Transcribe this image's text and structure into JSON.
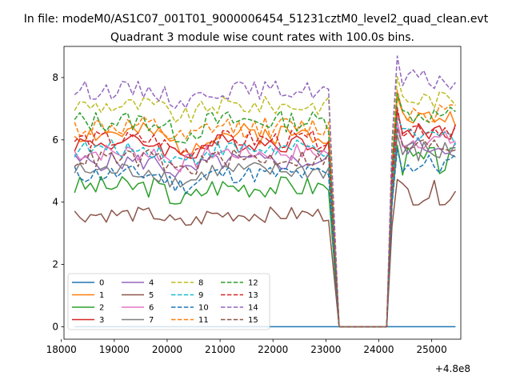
{
  "chart_data": {
    "type": "line",
    "suptitle": "In file: modeM0/AS1C07_001T01_9000006454_51231cztM0_level2_quad_clean.evt",
    "title": "Quadrant 3 module wise count rates with 100.0s bins.",
    "xlabel": "",
    "ylabel": "",
    "x_offset_label": "+4.8e8",
    "xlim": [
      18050,
      25550
    ],
    "ylim": [
      -0.4,
      9.0
    ],
    "x_ticks": [
      18000,
      19000,
      20000,
      21000,
      22000,
      23000,
      24000,
      25000
    ],
    "x_tick_labels": [
      "18000",
      "19000",
      "20000",
      "21000",
      "22000",
      "23000",
      "24000",
      "25000"
    ],
    "y_ticks": [
      0,
      2,
      4,
      6,
      8
    ],
    "y_tick_labels": [
      "0",
      "2",
      "4",
      "6",
      "8"
    ],
    "grid": false,
    "legend_placement": "lower-left",
    "legend_columns": 4,
    "segment1": {
      "x_start": 18250,
      "x_step": 100,
      "count": 49
    },
    "gap": {
      "x_start": 23250,
      "x_end": 24150,
      "value": 0
    },
    "segment2": {
      "x_start": 24250,
      "x_step": 100,
      "count": 13
    },
    "series": [
      {
        "name": "0",
        "color": "#1f77b4",
        "dash": "solid",
        "base1": 0.0,
        "amp1": 0.0,
        "base2": 0.0,
        "amp2": 0.0,
        "seed": 1
      },
      {
        "name": "1",
        "color": "#ff7f0e",
        "dash": "solid",
        "base1": 6.2,
        "amp1": 0.35,
        "base2": 6.7,
        "amp2": 0.3,
        "seed": 2
      },
      {
        "name": "2",
        "color": "#2ca02c",
        "dash": "solid",
        "base1": 4.5,
        "amp1": 0.35,
        "base2": 5.3,
        "amp2": 0.5,
        "seed": 3
      },
      {
        "name": "3",
        "color": "#d62728",
        "dash": "solid",
        "base1": 5.9,
        "amp1": 0.3,
        "base2": 6.3,
        "amp2": 0.3,
        "seed": 4
      },
      {
        "name": "4",
        "color": "#9467bd",
        "dash": "solid",
        "base1": 5.3,
        "amp1": 0.3,
        "base2": 5.8,
        "amp2": 0.3,
        "seed": 5
      },
      {
        "name": "5",
        "color": "#8c564b",
        "dash": "solid",
        "base1": 3.6,
        "amp1": 0.25,
        "base2": 4.3,
        "amp2": 0.4,
        "seed": 6
      },
      {
        "name": "6",
        "color": "#e377c2",
        "dash": "solid",
        "base1": 5.6,
        "amp1": 0.3,
        "base2": 6.0,
        "amp2": 0.3,
        "seed": 7
      },
      {
        "name": "7",
        "color": "#7f7f7f",
        "dash": "solid",
        "base1": 5.0,
        "amp1": 0.3,
        "base2": 5.6,
        "amp2": 0.4,
        "seed": 8
      },
      {
        "name": "8",
        "color": "#bcbd22",
        "dash": "dashed",
        "base1": 7.1,
        "amp1": 0.3,
        "base2": 7.3,
        "amp2": 0.3,
        "seed": 9
      },
      {
        "name": "9",
        "color": "#17becf",
        "dash": "dashed",
        "base1": 5.7,
        "amp1": 0.3,
        "base2": 6.1,
        "amp2": 0.3,
        "seed": 10
      },
      {
        "name": "10",
        "color": "#1f77b4",
        "dash": "dashed",
        "base1": 4.9,
        "amp1": 0.3,
        "base2": 5.2,
        "amp2": 0.4,
        "seed": 11
      },
      {
        "name": "11",
        "color": "#ff7f0e",
        "dash": "dashed",
        "base1": 6.4,
        "amp1": 0.35,
        "base2": 6.9,
        "amp2": 0.35,
        "seed": 12
      },
      {
        "name": "12",
        "color": "#2ca02c",
        "dash": "dashed",
        "base1": 6.6,
        "amp1": 0.35,
        "base2": 6.8,
        "amp2": 0.3,
        "seed": 13
      },
      {
        "name": "13",
        "color": "#d62728",
        "dash": "dashed",
        "base1": 6.0,
        "amp1": 0.3,
        "base2": 6.4,
        "amp2": 0.3,
        "seed": 14
      },
      {
        "name": "14",
        "color": "#9467bd",
        "dash": "dashed",
        "base1": 7.6,
        "amp1": 0.3,
        "base2": 7.9,
        "amp2": 0.35,
        "seed": 15
      },
      {
        "name": "15",
        "color": "#8c564b",
        "dash": "dashed",
        "base1": 5.4,
        "amp1": 0.3,
        "base2": 5.8,
        "amp2": 0.3,
        "seed": 16
      }
    ]
  }
}
